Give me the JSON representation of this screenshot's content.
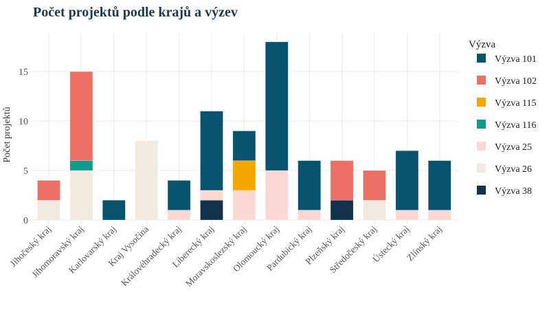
{
  "chart_data": {
    "type": "bar",
    "stacked": true,
    "title": "Počet projektů podle krajů a výzev",
    "xlabel": "",
    "ylabel": "Počet projektů",
    "ylim": [
      0,
      18.9
    ],
    "yticks": [
      0,
      5,
      10,
      15
    ],
    "grid": true,
    "legend": {
      "title": "Výzva",
      "position": "right"
    },
    "categories": [
      "Jihočeský kraj",
      "Jihomoravský kraj",
      "Karlovarský kraj",
      "Kraj Vysočina",
      "Královéhradecký kraj",
      "Liberecký kraj",
      "Moravskoslezský kraj",
      "Olomoucký kraj",
      "Pardubický kraj",
      "Plzeňský kraj",
      "Středočeský kraj",
      "Ústecký kraj",
      "Zlínský kraj"
    ],
    "stack_order": [
      "Výzva 38",
      "Výzva 26",
      "Výzva 25",
      "Výzva 116",
      "Výzva 115",
      "Výzva 102",
      "Výzva 101"
    ],
    "series": [
      {
        "name": "Výzva 101",
        "color": "#08546f",
        "values": [
          0,
          0,
          2,
          0,
          3,
          8,
          3,
          13,
          5,
          0,
          0,
          6,
          5
        ]
      },
      {
        "name": "Výzva 102",
        "color": "#ec7063",
        "values": [
          2,
          9,
          0,
          0,
          0,
          0,
          0,
          0,
          0,
          4,
          3,
          0,
          0
        ]
      },
      {
        "name": "Výzva 115",
        "color": "#f5a700",
        "values": [
          0,
          0,
          0,
          0,
          0,
          0,
          3,
          0,
          0,
          0,
          0,
          0,
          0
        ]
      },
      {
        "name": "Výzva 116",
        "color": "#0e9c8c",
        "values": [
          0,
          1,
          0,
          0,
          0,
          0,
          0,
          0,
          0,
          0,
          0,
          0,
          0
        ]
      },
      {
        "name": "Výzva 25",
        "color": "#fbd8d2",
        "values": [
          0,
          0,
          0,
          0,
          1,
          1,
          3,
          5,
          1,
          0,
          0,
          1,
          1
        ]
      },
      {
        "name": "Výzva 26",
        "color": "#f3e9df",
        "values": [
          2,
          5,
          0,
          8,
          0,
          0,
          0,
          0,
          0,
          0,
          2,
          0,
          0
        ]
      },
      {
        "name": "Výzva 38",
        "color": "#11324a",
        "values": [
          0,
          0,
          0,
          0,
          0,
          2,
          0,
          0,
          0,
          2,
          0,
          0,
          0
        ]
      }
    ]
  }
}
